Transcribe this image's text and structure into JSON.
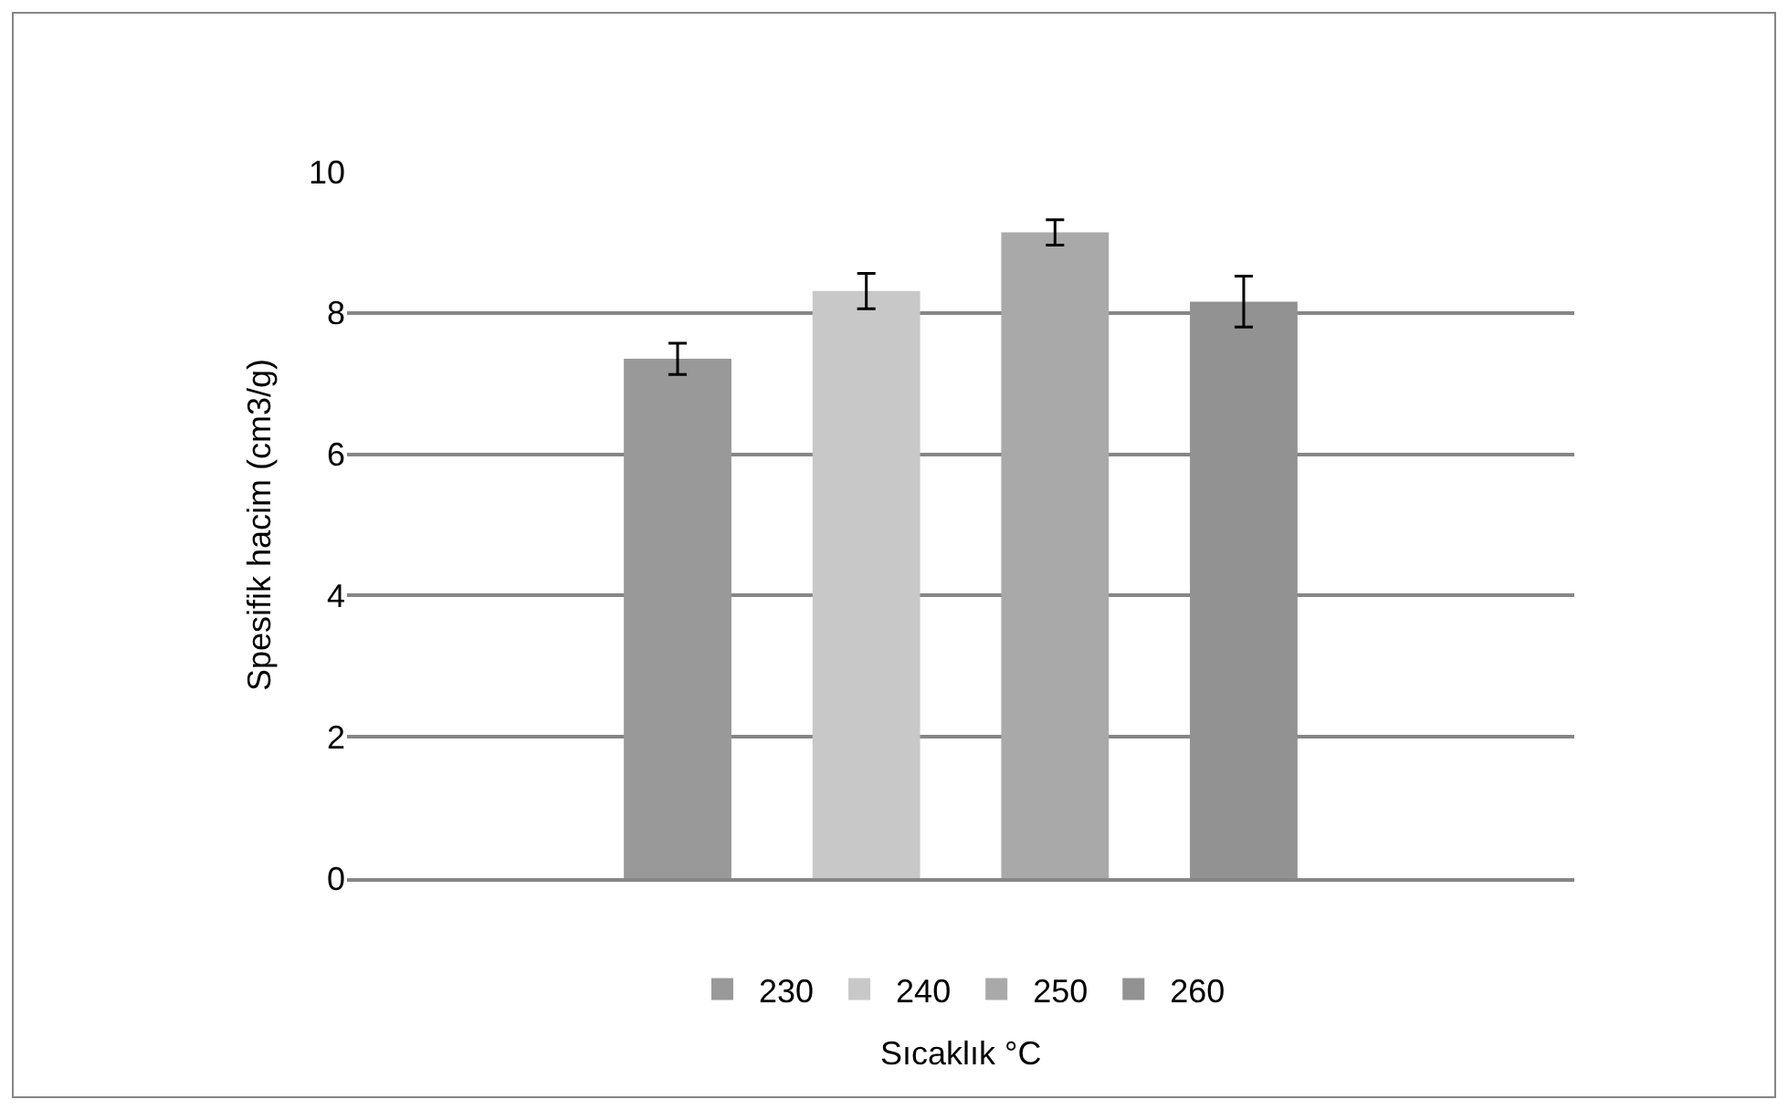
{
  "chart_data": {
    "type": "bar",
    "categories": [
      null
    ],
    "xlabel": "Sıcaklık °C",
    "ylabel": "Spesifik hacim (cm3/g)",
    "series": [
      {
        "name": "230",
        "color": "#999999",
        "values": [
          7.35
        ],
        "errors": [
          0.22
        ]
      },
      {
        "name": "240",
        "color": "#c8c8c8",
        "values": [
          8.31
        ],
        "errors": [
          0.25
        ]
      },
      {
        "name": "250",
        "color": "#a9a9a9",
        "values": [
          9.14
        ],
        "errors": [
          0.18
        ]
      },
      {
        "name": "260",
        "color": "#929292",
        "values": [
          8.16
        ],
        "errors": [
          0.36
        ]
      }
    ],
    "ylim": [
      0,
      10
    ],
    "yticks": [
      0,
      2,
      4,
      6,
      8,
      10
    ],
    "grid": "y",
    "legend": "bottom"
  }
}
